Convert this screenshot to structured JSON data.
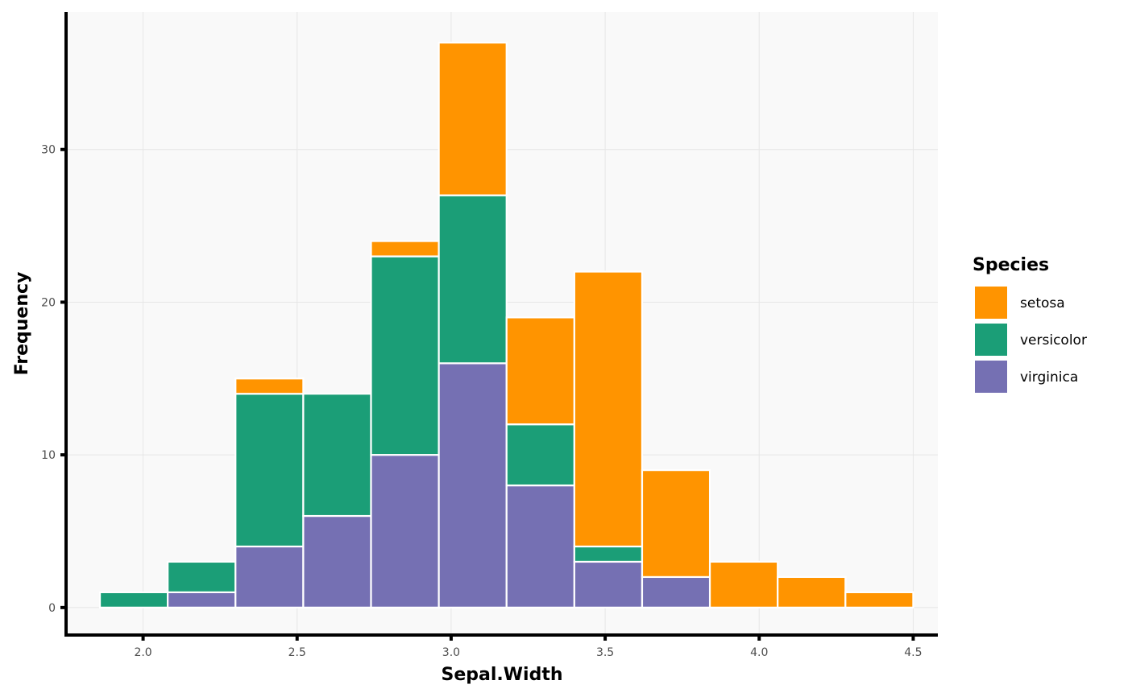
{
  "chart_data": {
    "type": "bar",
    "stacked": true,
    "xlabel": "Sepal.Width",
    "ylabel": "Frequency",
    "xlim": [
      1.75,
      4.58
    ],
    "ylim": [
      -1.8,
      39
    ],
    "x_ticks": [
      2.0,
      2.5,
      3.0,
      3.5,
      4.0,
      4.5
    ],
    "x_tick_labels": [
      "2.0",
      "2.5",
      "3.0",
      "3.5",
      "4.0",
      "4.5"
    ],
    "y_ticks": [
      0,
      10,
      20,
      30
    ],
    "y_tick_labels": [
      "0",
      "10",
      "20",
      "30"
    ],
    "grid": true,
    "legend_title": "Species",
    "legend_position": "right",
    "bins": [
      [
        1.86,
        2.08
      ],
      [
        2.08,
        2.3
      ],
      [
        2.3,
        2.52
      ],
      [
        2.52,
        2.74
      ],
      [
        2.74,
        2.96
      ],
      [
        2.96,
        3.18
      ],
      [
        3.18,
        3.4
      ],
      [
        3.4,
        3.62
      ],
      [
        3.62,
        3.84
      ],
      [
        3.84,
        4.06
      ],
      [
        4.06,
        4.28
      ],
      [
        4.28,
        4.5
      ]
    ],
    "series": [
      {
        "name": "virginica",
        "color": "#7570b3",
        "values": [
          0,
          1,
          4,
          6,
          10,
          16,
          8,
          3,
          2,
          0,
          0,
          0
        ]
      },
      {
        "name": "versicolor",
        "color": "#1b9e77",
        "values": [
          1,
          2,
          10,
          8,
          13,
          11,
          4,
          1,
          0,
          0,
          0,
          0
        ]
      },
      {
        "name": "setosa",
        "color": "#ff9400",
        "values": [
          0,
          0,
          1,
          0,
          1,
          10,
          7,
          18,
          7,
          3,
          2,
          1
        ]
      }
    ],
    "legend_order": [
      "setosa",
      "versicolor",
      "virginica"
    ]
  }
}
